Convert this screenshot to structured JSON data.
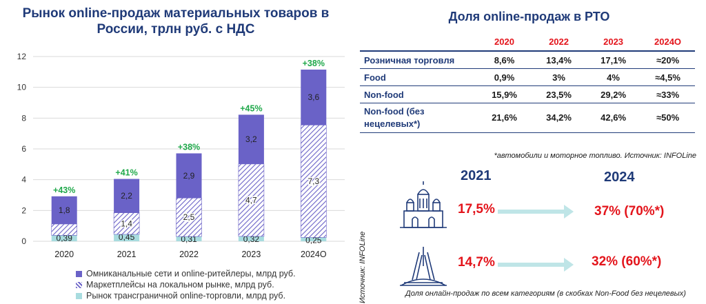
{
  "left_title": "Рынок online-продаж материальных товаров в России, трлн руб. с НДС",
  "chart_data": {
    "type": "bar",
    "stacked": true,
    "categories": [
      "2020",
      "2021",
      "2022",
      "2023",
      "2024О"
    ],
    "series": [
      {
        "name": "Рынок трансграничной online-торговли, млрд руб.",
        "values": [
          0.39,
          0.45,
          0.31,
          0.32,
          0.25
        ],
        "labels": [
          "0,39",
          "0,45",
          "0,31",
          "0,32",
          "0,25"
        ],
        "color": "#a8dcdf"
      },
      {
        "name": "Маркетплейсы на локальном рынке, млрд руб.",
        "values": [
          0.73,
          1.4,
          2.5,
          4.7,
          7.3
        ],
        "labels": [
          "",
          "1,4",
          "2,5",
          "4,7",
          "7,3"
        ],
        "color": "#6a62c7",
        "pattern": "hatch"
      },
      {
        "name": "Омниканальные сети и online-ритейлеры, млрд руб.",
        "values": [
          1.8,
          2.2,
          2.9,
          3.2,
          3.6
        ],
        "labels": [
          "1,8",
          "2,2",
          "2,9",
          "3,2",
          "3,6"
        ],
        "color": "#6a62c7"
      }
    ],
    "growth_labels": [
      "+43%",
      "+41%",
      "+38%",
      "+45%",
      "+38%"
    ],
    "yticks": [
      "0",
      "2",
      "4",
      "6",
      "8",
      "10",
      "12"
    ],
    "ylim": [
      0,
      12
    ],
    "legend_position": "bottom"
  },
  "legend": [
    {
      "label": "Омниканальные сети и online-ритейлеры, млрд руб.",
      "swatch": "solid"
    },
    {
      "label": "Маркетплейсы на локальном рынке, млрд руб.",
      "swatch": "hatch"
    },
    {
      "label": "Рынок трансграничной online-торговли, млрд руб.",
      "swatch": "teal"
    }
  ],
  "share_table": {
    "title": "Доля online-продаж в РТО",
    "headers": [
      "2020",
      "2022",
      "2023",
      "2024О"
    ],
    "rows": [
      {
        "label": "Розничная торговля",
        "values": [
          "8,6%",
          "13,4%",
          "17,1%",
          "≈20%"
        ]
      },
      {
        "label": "Food",
        "values": [
          "0,9%",
          "3%",
          "4%",
          "≈4,5%"
        ]
      },
      {
        "label": "Non-food",
        "values": [
          "15,9%",
          "23,5%",
          "29,2%",
          "≈33%"
        ]
      },
      {
        "label": "Non-food (без нецелевых*)",
        "values": [
          "21,6%",
          "34,2%",
          "42,6%",
          "≈50%"
        ]
      }
    ],
    "note": "*автомобили и моторное топливо. Источник: INFOLine"
  },
  "cities": {
    "year_from": "2021",
    "year_to": "2024",
    "moscow": {
      "from": "17,5%",
      "to": "37% (70%*)"
    },
    "spb": {
      "from": "14,7%",
      "to": "32% (60%*)"
    }
  },
  "source_vertical": "Источник: INFOLine",
  "bottom_caption": "Доля онлайн-продаж по всем категориям (в скобках Non-Food без нецелевых)",
  "colors": {
    "accent": "#1f3a78",
    "red": "#e3141b",
    "green": "#1fa84a",
    "bar": "#6a62c7",
    "teal": "#a8dcdf"
  }
}
